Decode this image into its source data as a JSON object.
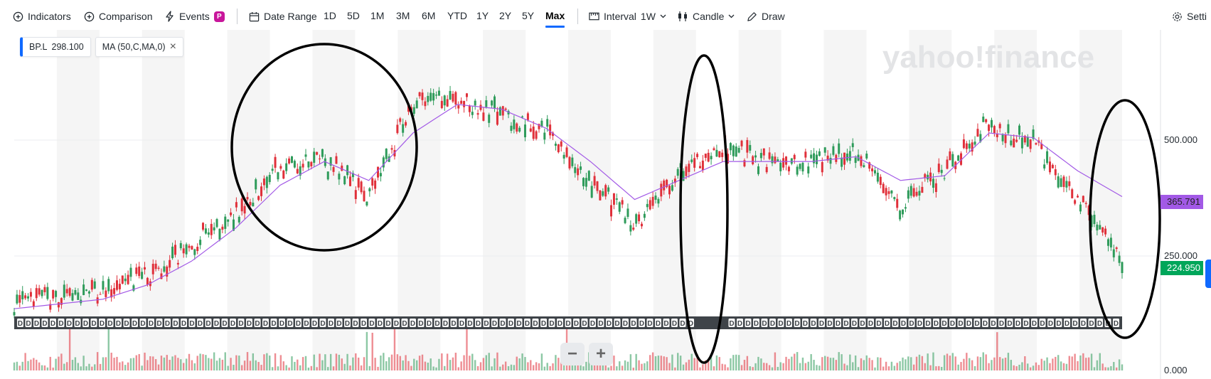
{
  "toolbar": {
    "indicators": "Indicators",
    "comparison": "Comparison",
    "events": "Events",
    "events_badge": "P",
    "date_range": "Date Range",
    "ranges": [
      "1D",
      "5D",
      "1M",
      "3M",
      "6M",
      "YTD",
      "1Y",
      "2Y",
      "5Y",
      "Max"
    ],
    "active_range": "Max",
    "interval_label": "Interval",
    "interval_value": "1W",
    "chart_type": "Candle",
    "draw": "Draw",
    "settings": "Setti"
  },
  "legend": {
    "symbol": "BP.L",
    "symbol_price": "298.100",
    "ma_label": "MA (50,C,MA,0)"
  },
  "watermark": "yahoo!finance",
  "price_axis": {
    "ticks": [
      "500.000",
      "250.000",
      "0.000"
    ],
    "ma_tag": "365.791",
    "price_tag": "224.950"
  },
  "dividend_marker": "D",
  "zoom": {
    "minus": "−",
    "plus": "+"
  },
  "colors": {
    "up": "#2e9b5a",
    "down": "#e0303a",
    "ma": "#a259e6",
    "accent": "#0f69ff",
    "price_tag": "#00a65a",
    "ma_tag": "#a259e6",
    "events_badge": "#c8169b"
  },
  "chart_data": {
    "type": "candlestick",
    "title": "",
    "symbol": "BP.L",
    "interval": "1W",
    "range": "Max",
    "x": [
      0,
      10,
      20,
      30,
      40,
      50,
      60,
      70,
      80,
      90,
      100,
      110,
      120,
      130,
      140,
      150,
      160,
      170,
      180,
      190,
      200,
      210,
      220,
      230,
      240,
      250
    ],
    "close": [
      140,
      150,
      165,
      200,
      260,
      330,
      430,
      440,
      370,
      560,
      570,
      540,
      500,
      390,
      310,
      420,
      470,
      440,
      440,
      460,
      350,
      420,
      520,
      480,
      360,
      225
    ],
    "ma": [
      130,
      140,
      150,
      180,
      230,
      300,
      390,
      440,
      400,
      500,
      560,
      550,
      510,
      440,
      360,
      400,
      440,
      440,
      440,
      450,
      400,
      410,
      500,
      490,
      420,
      366
    ],
    "ylim": [
      0,
      720
    ],
    "y_ticks": [
      0,
      250,
      500
    ],
    "last_price": 224.95,
    "ma_last": 365.791
  }
}
